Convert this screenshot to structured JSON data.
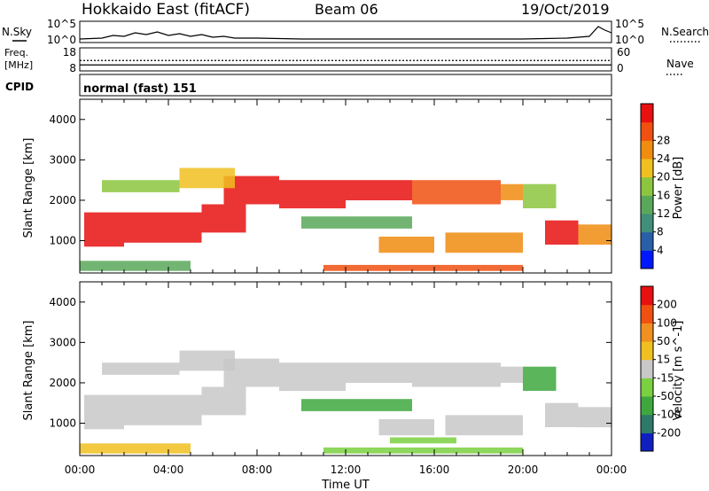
{
  "header": {
    "title": "Hokkaido East (fitACF)",
    "beam": "Beam 06",
    "date": "19/Oct/2019"
  },
  "noise_panel": {
    "left_label": "N.Sky",
    "right_label": "N.Search",
    "tick_top": "10^5",
    "tick_bottom": "10^0",
    "sky_trace": [
      [
        0.0,
        0.2
      ],
      [
        1.0,
        0.3
      ],
      [
        1.5,
        0.6
      ],
      [
        2.0,
        0.5
      ],
      [
        2.5,
        0.9
      ],
      [
        3.0,
        0.7
      ],
      [
        3.5,
        1.0
      ],
      [
        4.0,
        0.6
      ],
      [
        4.5,
        0.8
      ],
      [
        5.0,
        0.5
      ],
      [
        5.5,
        0.7
      ],
      [
        6.0,
        0.4
      ],
      [
        6.5,
        0.5
      ],
      [
        7.0,
        0.3
      ],
      [
        8.0,
        0.3
      ],
      [
        9.0,
        0.25
      ],
      [
        10.0,
        0.2
      ],
      [
        12.0,
        0.2
      ],
      [
        14.0,
        0.2
      ],
      [
        16.0,
        0.2
      ],
      [
        18.0,
        0.2
      ],
      [
        20.0,
        0.2
      ],
      [
        21.0,
        0.25
      ],
      [
        22.0,
        0.3
      ],
      [
        22.5,
        0.4
      ],
      [
        23.0,
        0.5
      ],
      [
        23.4,
        1.6
      ],
      [
        23.7,
        1.2
      ],
      [
        24.0,
        0.9
      ]
    ]
  },
  "freq_panel": {
    "left_label_1": "Freq.",
    "left_label_2": "[MHz]",
    "right_label": "Nave",
    "left_ticks": [
      "18",
      "8"
    ],
    "right_ticks": [
      "60",
      "0"
    ],
    "frequency_mhz": 10.5,
    "nave": 28
  },
  "cpid_panel": {
    "left_label": "CPID",
    "mode_text": "normal (fast) 151"
  },
  "chart_data": [
    {
      "type": "heatmap",
      "name": "power",
      "ylabel": "Slant Range [km]",
      "yticks": [
        "1000",
        "2000",
        "3000",
        "4000"
      ],
      "ylim": [
        200,
        4500
      ],
      "xlim": [
        0,
        24
      ],
      "colorbar_label": "Power [dB]",
      "colorbar_ticks": [
        "4",
        "8",
        "12",
        "16",
        "20",
        "24",
        "28"
      ],
      "colorbar_colors": [
        "#0018ff",
        "#2a5fa8",
        "#3f8f7a",
        "#59a85a",
        "#8cc63f",
        "#f0c020",
        "#f08c10",
        "#f05010",
        "#e81010"
      ],
      "bands": [
        {
          "t": [
            0.2,
            2.0
          ],
          "r": [
            850,
            1700
          ],
          "level": 8
        },
        {
          "t": [
            2.0,
            5.5
          ],
          "r": [
            950,
            1700
          ],
          "level": 8
        },
        {
          "t": [
            5.5,
            7.5
          ],
          "r": [
            1200,
            1900
          ],
          "level": 8
        },
        {
          "t": [
            6.5,
            9.0
          ],
          "r": [
            1900,
            2600
          ],
          "level": 8
        },
        {
          "t": [
            9.0,
            12.0
          ],
          "r": [
            1800,
            2500
          ],
          "level": 8
        },
        {
          "t": [
            12.0,
            15.0
          ],
          "r": [
            2000,
            2500
          ],
          "level": 8
        },
        {
          "t": [
            15.0,
            19.0
          ],
          "r": [
            1900,
            2500
          ],
          "level": 7
        },
        {
          "t": [
            19.0,
            20.0
          ],
          "r": [
            2000,
            2400
          ],
          "level": 6
        },
        {
          "t": [
            21.0,
            22.5
          ],
          "r": [
            900,
            1500
          ],
          "level": 8
        },
        {
          "t": [
            22.5,
            24.0
          ],
          "r": [
            900,
            1400
          ],
          "level": 6
        },
        {
          "t": [
            1.0,
            4.5
          ],
          "r": [
            2200,
            2500
          ],
          "level": 4
        },
        {
          "t": [
            4.5,
            7.0
          ],
          "r": [
            2300,
            2800
          ],
          "level": 5
        },
        {
          "t": [
            10.0,
            15.0
          ],
          "r": [
            1300,
            1600
          ],
          "level": 3
        },
        {
          "t": [
            13.5,
            16.0
          ],
          "r": [
            700,
            1100
          ],
          "level": 6
        },
        {
          "t": [
            16.5,
            20.0
          ],
          "r": [
            700,
            1200
          ],
          "level": 6
        },
        {
          "t": [
            11.0,
            20.0
          ],
          "r": [
            250,
            400
          ],
          "level": 7
        },
        {
          "t": [
            20.0,
            21.5
          ],
          "r": [
            1800,
            2400
          ],
          "level": 4
        },
        {
          "t": [
            0.0,
            5.0
          ],
          "r": [
            250,
            500
          ],
          "level": 3
        }
      ]
    },
    {
      "type": "heatmap",
      "name": "velocity",
      "ylabel": "Slant Range [km]",
      "yticks": [
        "1000",
        "2000",
        "3000",
        "4000"
      ],
      "ylim": [
        200,
        4500
      ],
      "xlim": [
        0,
        24
      ],
      "xticks": [
        "00:00",
        "04:00",
        "08:00",
        "12:00",
        "16:00",
        "20:00",
        "00:00"
      ],
      "xlabel": "Time UT",
      "colorbar_label": "Velocity [m s^-1]",
      "colorbar_ticks": [
        "200",
        "100",
        "50",
        "15",
        "-15",
        "-50",
        "-100",
        "-200"
      ],
      "colorbar_colors": [
        "#1020c0",
        "#2e7a6a",
        "#3ea83e",
        "#7ad040",
        "#c8c8c8",
        "#f0c020",
        "#f09020",
        "#f05010",
        "#e81010"
      ],
      "bands": [
        {
          "t": [
            0.2,
            2.0
          ],
          "r": [
            850,
            1700
          ],
          "level": 4
        },
        {
          "t": [
            2.0,
            5.5
          ],
          "r": [
            950,
            1700
          ],
          "level": 4
        },
        {
          "t": [
            5.5,
            7.5
          ],
          "r": [
            1200,
            1900
          ],
          "level": 4
        },
        {
          "t": [
            6.5,
            9.0
          ],
          "r": [
            1900,
            2600
          ],
          "level": 4
        },
        {
          "t": [
            9.0,
            12.0
          ],
          "r": [
            1800,
            2500
          ],
          "level": 4
        },
        {
          "t": [
            12.0,
            15.0
          ],
          "r": [
            2000,
            2500
          ],
          "level": 4
        },
        {
          "t": [
            15.0,
            19.0
          ],
          "r": [
            1900,
            2500
          ],
          "level": 4
        },
        {
          "t": [
            19.0,
            20.0
          ],
          "r": [
            2000,
            2400
          ],
          "level": 4
        },
        {
          "t": [
            21.0,
            22.5
          ],
          "r": [
            900,
            1500
          ],
          "level": 4
        },
        {
          "t": [
            22.5,
            24.0
          ],
          "r": [
            900,
            1400
          ],
          "level": 4
        },
        {
          "t": [
            1.0,
            4.5
          ],
          "r": [
            2200,
            2500
          ],
          "level": 4
        },
        {
          "t": [
            4.5,
            7.0
          ],
          "r": [
            2300,
            2800
          ],
          "level": 4
        },
        {
          "t": [
            10.0,
            15.0
          ],
          "r": [
            1300,
            1600
          ],
          "level": 2
        },
        {
          "t": [
            13.5,
            16.0
          ],
          "r": [
            700,
            1100
          ],
          "level": 4
        },
        {
          "t": [
            16.5,
            20.0
          ],
          "r": [
            700,
            1200
          ],
          "level": 4
        },
        {
          "t": [
            11.0,
            20.0
          ],
          "r": [
            250,
            400
          ],
          "level": 3
        },
        {
          "t": [
            14.0,
            17.0
          ],
          "r": [
            500,
            650
          ],
          "level": 3
        },
        {
          "t": [
            20.0,
            21.5
          ],
          "r": [
            1800,
            2400
          ],
          "level": 2
        },
        {
          "t": [
            0.0,
            5.0
          ],
          "r": [
            250,
            500
          ],
          "level": 5
        }
      ]
    }
  ]
}
